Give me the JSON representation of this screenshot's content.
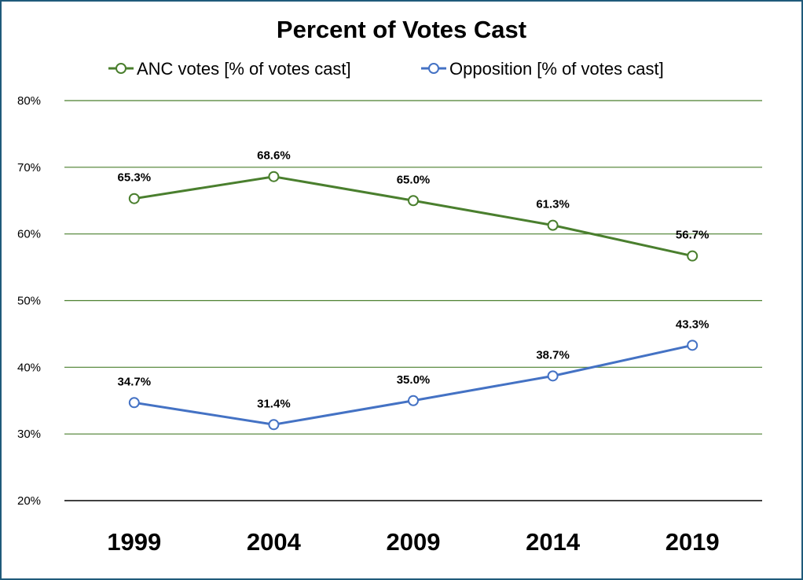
{
  "chart_data": {
    "type": "line",
    "title": "Percent of Votes Cast",
    "xlabel": "",
    "ylabel": "",
    "categories": [
      "1999",
      "2004",
      "2009",
      "2014",
      "2019"
    ],
    "series": [
      {
        "name": "ANC votes [% of votes cast]",
        "color": "#4a7f2e",
        "values": [
          65.3,
          68.6,
          65.0,
          61.3,
          56.7
        ],
        "labels": [
          "65.3%",
          "68.6%",
          "65.0%",
          "61.3%",
          "56.7%"
        ]
      },
      {
        "name": "Opposition [% of votes cast]",
        "color": "#4472c4",
        "values": [
          34.7,
          31.4,
          35.0,
          38.7,
          43.3
        ],
        "labels": [
          "34.7%",
          "31.4%",
          "35.0%",
          "38.7%",
          "43.3%"
        ]
      }
    ],
    "ylim": [
      20,
      80
    ],
    "yticks": [
      20,
      30,
      40,
      50,
      60,
      70,
      80
    ],
    "ytick_labels": [
      "20%",
      "30%",
      "40%",
      "50%",
      "60%",
      "70%",
      "80%"
    ],
    "grid": true,
    "grid_color": "#4a7f2e",
    "legend_position": "top-center",
    "border_color": "#1f5a7a"
  }
}
